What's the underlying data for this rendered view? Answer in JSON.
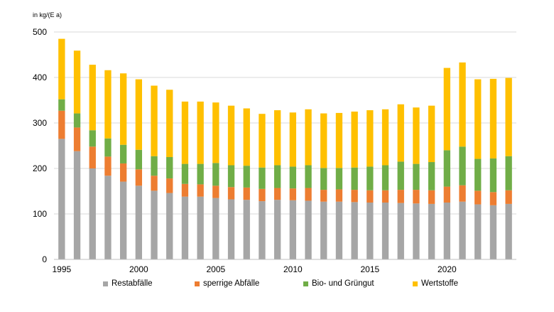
{
  "chart_data": {
    "type": "bar",
    "stacked": true,
    "unit_label": "in kg/(E a)",
    "ylim": [
      0,
      500
    ],
    "y_ticks": [
      0,
      100,
      200,
      300,
      400,
      500
    ],
    "categories": [
      "1995",
      "1996",
      "1997",
      "1998",
      "1999",
      "2000",
      "2001",
      "2002",
      "2003",
      "2004",
      "2005",
      "2006",
      "2007",
      "2008",
      "2009",
      "2010",
      "2011",
      "2012",
      "2013",
      "2014",
      "2015",
      "2016",
      "2017",
      "2018",
      "2019",
      "2020",
      "2021",
      "2022",
      "2023",
      "2024"
    ],
    "x_tick_labels": [
      "1995",
      "2000",
      "2005",
      "2010",
      "2015",
      "2020"
    ],
    "series": [
      {
        "name": "Restabfälle",
        "color": "#a6a6a6",
        "values": [
          265,
          238,
          200,
          184,
          171,
          162,
          151,
          146,
          138,
          138,
          135,
          132,
          131,
          128,
          131,
          130,
          129,
          127,
          127,
          126,
          125,
          125,
          124,
          123,
          122,
          125,
          127,
          121,
          119,
          122
        ]
      },
      {
        "name": "sperrige Abfälle",
        "color": "#ed7d31",
        "values": [
          62,
          52,
          48,
          42,
          40,
          36,
          33,
          32,
          28,
          27,
          27,
          27,
          27,
          27,
          26,
          26,
          28,
          26,
          27,
          27,
          27,
          27,
          29,
          30,
          30,
          35,
          36,
          30,
          29,
          30
        ]
      },
      {
        "name": "Bio- und Grüngut",
        "color": "#70ad47",
        "values": [
          25,
          31,
          36,
          40,
          41,
          43,
          43,
          47,
          44,
          45,
          50,
          48,
          48,
          47,
          50,
          48,
          50,
          48,
          47,
          49,
          52,
          55,
          62,
          57,
          62,
          80,
          85,
          70,
          74,
          75
        ]
      },
      {
        "name": "Wertstoffe",
        "color": "#ffc000",
        "values": [
          133,
          138,
          144,
          150,
          157,
          155,
          155,
          148,
          137,
          137,
          133,
          131,
          126,
          118,
          121,
          119,
          123,
          120,
          121,
          123,
          124,
          123,
          126,
          124,
          124,
          181,
          185,
          175,
          175,
          172
        ]
      }
    ]
  }
}
